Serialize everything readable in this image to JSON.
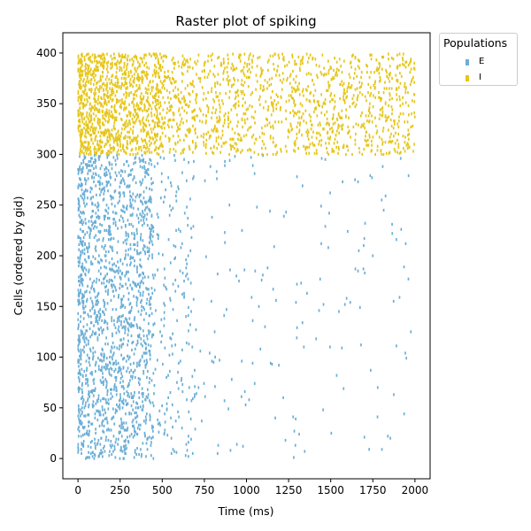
{
  "chart_data": {
    "type": "scatter",
    "title": "Raster plot of spiking",
    "xlabel": "Time (ms)",
    "ylabel": "Cells (ordered by gid)",
    "xlim": [
      -90,
      2090
    ],
    "ylim": [
      -20,
      420
    ],
    "x_ticks": [
      0,
      250,
      500,
      750,
      1000,
      1250,
      1500,
      1750,
      2000
    ],
    "y_ticks": [
      0,
      50,
      100,
      150,
      200,
      250,
      300,
      350,
      400
    ],
    "grid": false,
    "legend": {
      "title": "Populations",
      "placement": "outside-top-right"
    },
    "series": [
      {
        "name": "E",
        "color": "#6baed6",
        "gid_range": [
          0,
          299
        ],
        "time_range": [
          0,
          2000
        ],
        "rate_profile": "dense burst 0–450 ms (highest 0–300 ms), sparse after 450 ms"
      },
      {
        "name": "I",
        "color": "#e6c619",
        "gid_range": [
          300,
          399
        ],
        "time_range": [
          0,
          2000
        ],
        "rate_profile": "dense 0–500 ms, moderately dense through 2000 ms"
      }
    ]
  }
}
